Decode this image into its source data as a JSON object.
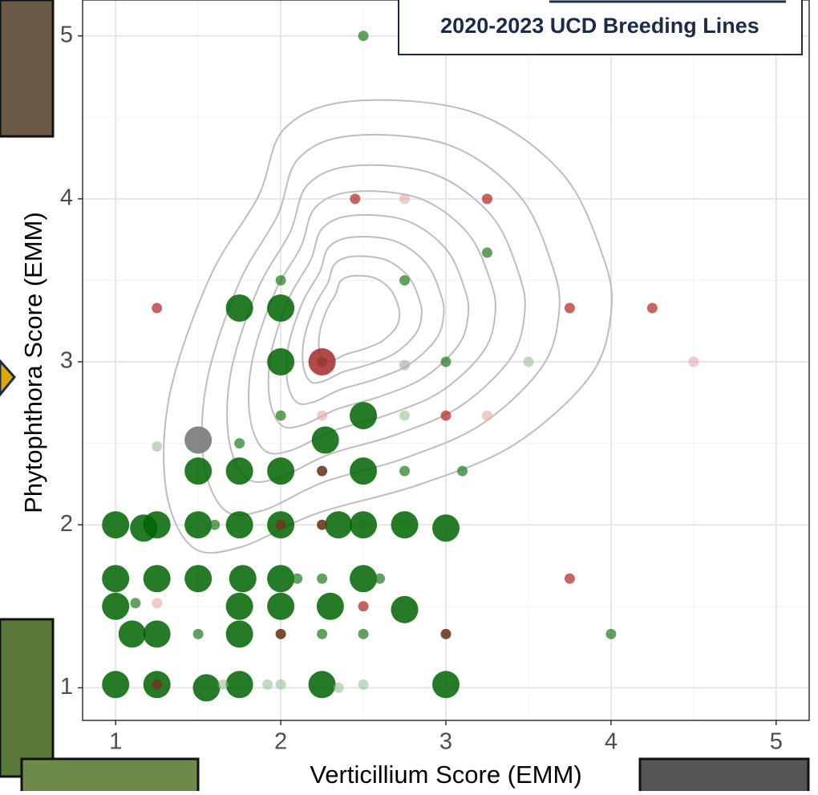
{
  "chart_data": {
    "type": "scatter",
    "title": "2020-2023 UCD Breeding Lines",
    "x_label": "Verticillium Score (EMM)",
    "y_label": "Phytophthora Score (EMM)",
    "xlim": [
      0.8,
      5.2
    ],
    "xticks": [
      1,
      2,
      3,
      4,
      5
    ],
    "ylim": [
      0.8,
      5.22
    ],
    "yticks": [
      1,
      2,
      3,
      4,
      5
    ],
    "grid": true,
    "series": [
      {
        "color": "#006400",
        "opacity": 0.85,
        "marker_size": 17,
        "x": [
          1.75,
          2,
          2,
          2.5,
          2.27,
          1.5,
          1.75,
          2,
          2.5,
          1,
          1.17,
          1.25,
          1.5,
          1.75,
          2,
          2.35,
          2.5,
          2.75,
          3,
          1,
          1.25,
          1.5,
          1.77,
          2,
          2.5,
          1,
          1.75,
          2,
          2.3,
          2.75,
          1.1,
          1.25,
          1.75,
          1,
          1.25,
          1.55,
          1.75,
          2.25,
          3
        ],
        "values": [
          3.33,
          3.33,
          3,
          2.67,
          2.52,
          2.33,
          2.33,
          2.33,
          2.33,
          2,
          1.98,
          2,
          2,
          2,
          2,
          2,
          2,
          2,
          1.98,
          1.67,
          1.67,
          1.67,
          1.67,
          1.67,
          1.67,
          1.5,
          1.5,
          1.5,
          1.5,
          1.48,
          1.33,
          1.33,
          1.33,
          1.02,
          1.02,
          1,
          1.02,
          1.02,
          1.02
        ]
      },
      {
        "color": "#1e7b1e",
        "opacity": 0.7,
        "marker_size": 6.5,
        "x": [
          2.5,
          3.25,
          2,
          2.75,
          2,
          3,
          2.25,
          2.75,
          3.1,
          1.75,
          1.5,
          2.25,
          2.5,
          2.25,
          1.12,
          4,
          2.1,
          2.6,
          1.6,
          2.5,
          2.75
        ],
        "values": [
          5,
          3.67,
          3.5,
          3.5,
          2.67,
          3,
          3,
          2.33,
          2.33,
          2.5,
          1.33,
          1.33,
          1.33,
          1.67,
          1.52,
          1.33,
          1.67,
          1.67,
          2,
          2,
          2
        ]
      },
      {
        "color": "#8fbc8f",
        "opacity": 0.55,
        "marker_size": 6.5,
        "x": [
          3.5,
          2.75,
          1.25,
          1.92,
          2,
          2.5,
          2.35,
          1.65
        ],
        "values": [
          3,
          2.67,
          2.48,
          1.02,
          1.02,
          1.02,
          1,
          1.02
        ]
      },
      {
        "color": "#b22222",
        "opacity": 0.7,
        "marker_size": 6.5,
        "x": [
          2.45,
          3.25,
          1.25,
          3.75,
          4.25,
          3,
          3.75,
          2.5
        ],
        "values": [
          4,
          4,
          3.33,
          3.33,
          3.33,
          2.67,
          1.67,
          1.5
        ]
      },
      {
        "color": "#e8a8a8",
        "opacity": 0.6,
        "marker_size": 6.5,
        "x": [
          2.75,
          4.5,
          2.25,
          3.25,
          1.25
        ],
        "values": [
          4,
          3,
          2.67,
          2.67,
          1.52
        ]
      },
      {
        "color": "#a52a2a",
        "opacity": 0.85,
        "marker_size": 17,
        "x": [
          2.25
        ],
        "values": [
          3
        ]
      },
      {
        "color": "#6b3a1e",
        "opacity": 0.9,
        "marker_size": 6.5,
        "x": [
          2.25,
          2,
          2.25,
          3,
          1.25,
          2
        ],
        "values": [
          2.33,
          2,
          2,
          1.33,
          1.02,
          1.33
        ]
      },
      {
        "color": "#808080",
        "opacity": 0.95,
        "marker_size": 17,
        "x": [
          1.5
        ],
        "values": [
          2.52
        ]
      },
      {
        "color": "#b0b0b0",
        "opacity": 0.7,
        "marker_size": 6.5,
        "x": [
          2.75
        ],
        "values": [
          2.98
        ]
      }
    ]
  }
}
